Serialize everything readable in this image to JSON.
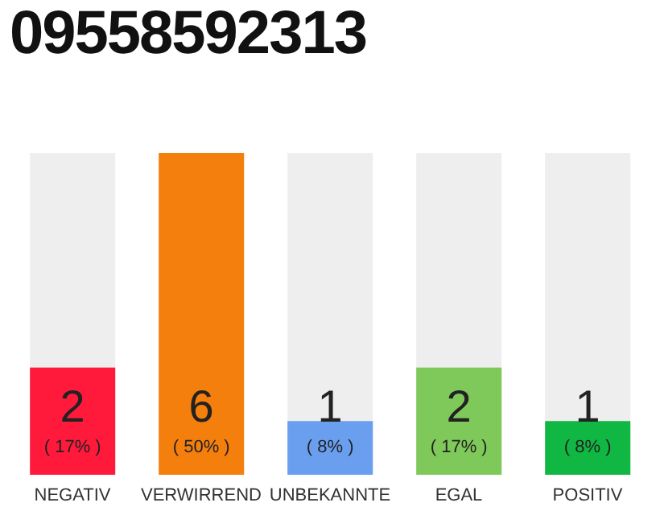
{
  "chart_data": {
    "type": "bar",
    "title": "09558592313",
    "categories": [
      "NEGATIV",
      "VERWIRREND",
      "UNBEKANNTE",
      "EGAL",
      "POSITIV"
    ],
    "values": [
      2,
      6,
      1,
      2,
      1
    ],
    "colors": [
      "#ff1a3c",
      "#f57f0c",
      "#6a9ff0",
      "#7ec95a",
      "#10b843"
    ],
    "value_labels": [
      "2\n( 17% )",
      "6\n( 50% )",
      "1\n( 8% )",
      "2\n( 17% )",
      "1\n( 8% )"
    ],
    "tick_labels": "x"
  }
}
